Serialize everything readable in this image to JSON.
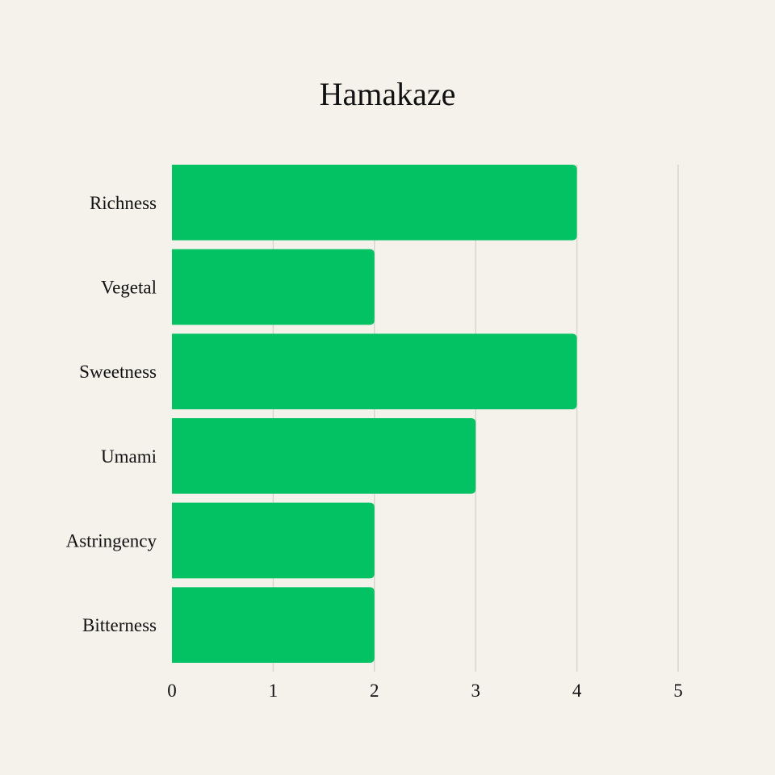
{
  "chart_data": {
    "type": "bar",
    "orientation": "horizontal",
    "title": "Hamakaze",
    "xlabel": "",
    "ylabel": "",
    "categories": [
      "Richness",
      "Vegetal",
      "Sweetness",
      "Umami",
      "Astringency",
      "Bitterness"
    ],
    "values": [
      4,
      2,
      4,
      3,
      2,
      2
    ],
    "xlim": [
      0,
      5
    ],
    "xticks": [
      "0",
      "1",
      "2",
      "3",
      "4",
      "5"
    ],
    "grid": "vertical",
    "bar_color": "#02c263",
    "background_color": "#f5f1eb"
  }
}
